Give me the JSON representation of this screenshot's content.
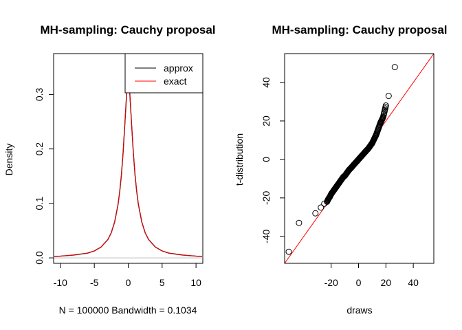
{
  "chart_data": [
    {
      "type": "line",
      "title": "MH-sampling: Cauchy  proposal",
      "xlabel": "N = 100000   Bandwidth = 0.1034",
      "ylabel": "Density",
      "xlim": [
        -11,
        11
      ],
      "ylim": [
        -0.01,
        0.375
      ],
      "x_ticks": [
        "-10",
        "-5",
        "0",
        "5",
        "10"
      ],
      "y_ticks": [
        "0.0",
        "0.1",
        "0.2",
        "0.3"
      ],
      "legend": {
        "position": "top-right",
        "entries": [
          "approx",
          "exact"
        ]
      },
      "series": [
        {
          "name": "approx",
          "color": "#000000",
          "x": [
            -11,
            -10,
            -8,
            -6,
            -5,
            -4,
            -3,
            -2.5,
            -2,
            -1.5,
            -1.25,
            -1,
            -0.75,
            -0.5,
            -0.25,
            0,
            0.25,
            0.5,
            0.75,
            1,
            1.25,
            1.5,
            2,
            2.5,
            3,
            4,
            5,
            6,
            8,
            10,
            11
          ],
          "y": [
            0.0025,
            0.0032,
            0.0052,
            0.0087,
            0.0127,
            0.0199,
            0.0338,
            0.046,
            0.066,
            0.098,
            0.122,
            0.153,
            0.194,
            0.245,
            0.298,
            0.353,
            0.298,
            0.245,
            0.194,
            0.153,
            0.122,
            0.098,
            0.066,
            0.046,
            0.0338,
            0.0199,
            0.0127,
            0.0087,
            0.0052,
            0.0032,
            0.0025
          ]
        },
        {
          "name": "exact",
          "color": "#ff0000",
          "x": [
            -11,
            -10,
            -8,
            -6,
            -5,
            -4,
            -3,
            -2.5,
            -2,
            -1.5,
            -1.25,
            -1,
            -0.75,
            -0.5,
            -0.25,
            0,
            0.25,
            0.5,
            0.75,
            1,
            1.25,
            1.5,
            2,
            2.5,
            3,
            4,
            5,
            6,
            8,
            10,
            11
          ],
          "y": [
            0.0025,
            0.0032,
            0.0052,
            0.0087,
            0.0127,
            0.0199,
            0.0338,
            0.046,
            0.066,
            0.098,
            0.122,
            0.153,
            0.194,
            0.245,
            0.298,
            0.353,
            0.298,
            0.245,
            0.194,
            0.153,
            0.122,
            0.098,
            0.066,
            0.046,
            0.0338,
            0.0199,
            0.0127,
            0.0087,
            0.0052,
            0.0032,
            0.0025
          ]
        }
      ]
    },
    {
      "type": "scatter",
      "title": "MH-sampling: Cauchy  proposal",
      "xlabel": "draws",
      "ylabel": "t-distribution",
      "xlim": [
        -54,
        55
      ],
      "ylim": [
        -54,
        55
      ],
      "x_ticks": [
        "-20",
        "0",
        "20",
        "40"
      ],
      "y_ticks": [
        "-40",
        "-20",
        "0",
        "20",
        "40"
      ],
      "reference_line": {
        "color": "#ff0000",
        "intercept": 0,
        "slope": 1
      },
      "points": {
        "x": [
          -51,
          -43.5,
          -31.5,
          -27.5,
          -25,
          -23,
          -22,
          -21,
          -20,
          -19,
          -18,
          -17,
          -16,
          -15,
          -14,
          -13,
          -12,
          -11,
          -10,
          -9,
          -8,
          -7,
          -6,
          -5,
          -4,
          -3,
          -2,
          -1,
          0,
          1,
          2,
          3,
          4,
          5,
          6,
          7,
          8,
          9,
          10,
          11,
          12,
          13,
          14,
          15,
          16,
          17,
          18,
          19,
          20,
          22,
          26.5
        ],
        "y": [
          -48,
          -33,
          -28,
          -25,
          -23,
          -22,
          -20.5,
          -19.5,
          -18,
          -17,
          -16,
          -15,
          -14,
          -13,
          -12,
          -11,
          -10,
          -9,
          -8.5,
          -7.5,
          -6.5,
          -5.5,
          -4.8,
          -4,
          -3.2,
          -2.4,
          -1.6,
          -0.8,
          0,
          0.8,
          1.6,
          2.4,
          3.2,
          4,
          4.8,
          5.5,
          6.5,
          7.5,
          8.5,
          10,
          11.5,
          13,
          15,
          17,
          19,
          20.5,
          22,
          25,
          28,
          33,
          48
        ]
      }
    }
  ]
}
